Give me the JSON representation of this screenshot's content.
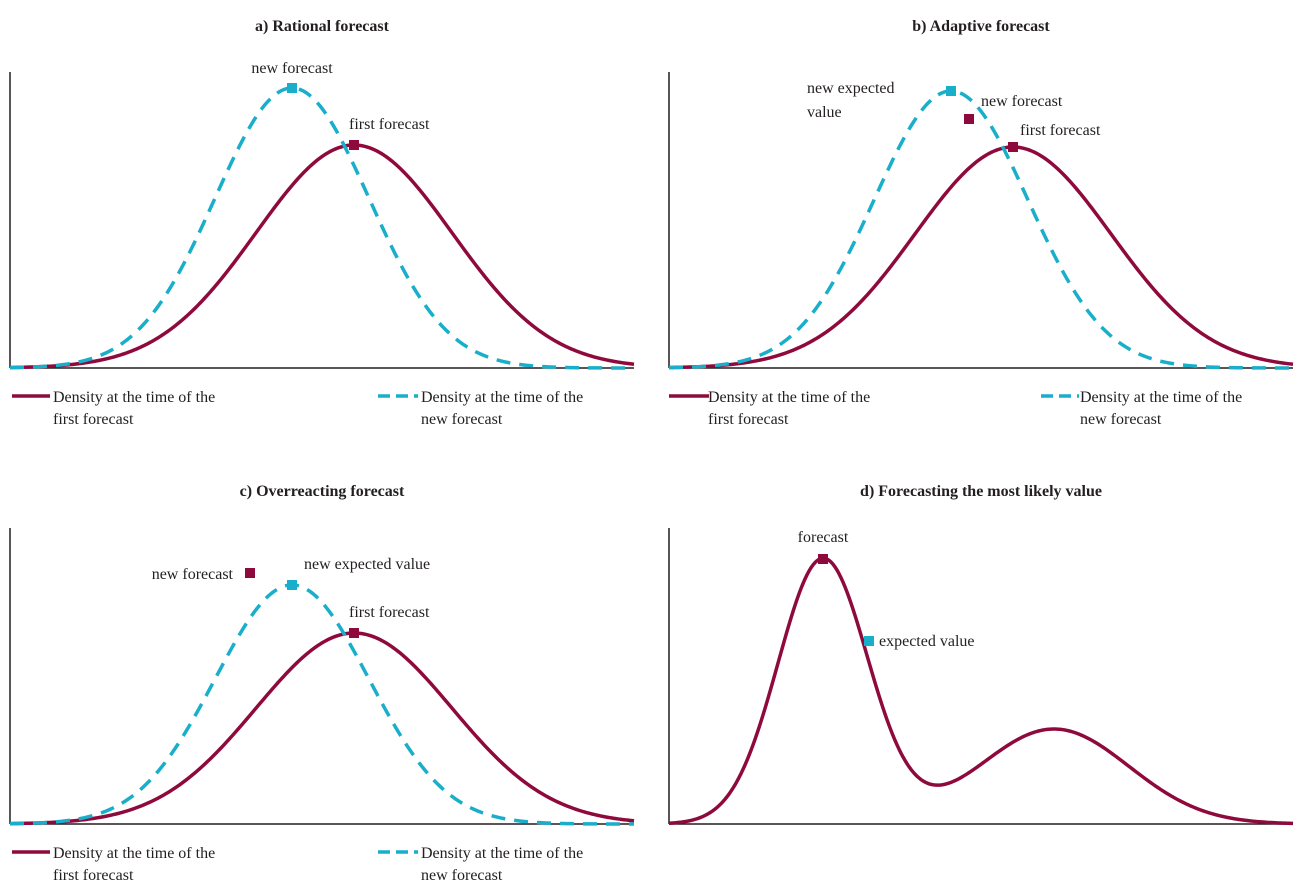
{
  "colors": {
    "first": "#8f0a3c",
    "new": "#19aec9",
    "axis": "#231f20"
  },
  "legend": {
    "first_line1": "Density at the time of the",
    "first_line2": "first forecast",
    "new_line1": "Density at the time of the",
    "new_line2": "new forecast"
  },
  "panels": {
    "a": {
      "title": "a) Rational forecast",
      "labels": {
        "new_forecast": "new forecast",
        "first_forecast": "first forecast"
      }
    },
    "b": {
      "title": "b) Adaptive forecast",
      "labels": {
        "new_expected_line1": "new expected",
        "new_expected_line2": "value",
        "new_forecast": "new forecast",
        "first_forecast": "first forecast"
      }
    },
    "c": {
      "title": "c) Overreacting forecast",
      "labels": {
        "new_forecast": "new forecast",
        "new_expected": "new expected value",
        "first_forecast": "first forecast"
      }
    },
    "d": {
      "title": "d) Forecasting the most likely value",
      "labels": {
        "forecast": "forecast",
        "expected_value": "expected value"
      }
    }
  }
}
